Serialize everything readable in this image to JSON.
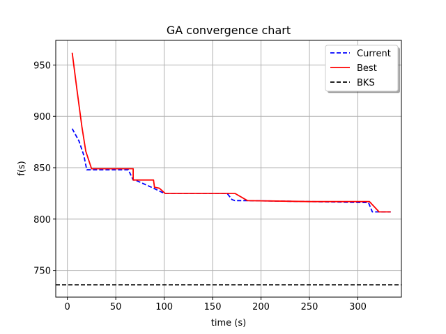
{
  "chart_data": {
    "type": "line",
    "title": "GA convergence chart",
    "xlabel": "time (s)",
    "ylabel": "f(s)",
    "xlim": [
      -12,
      345
    ],
    "ylim": [
      724,
      974
    ],
    "xticks": [
      0,
      50,
      100,
      150,
      200,
      250,
      300
    ],
    "yticks": [
      750,
      800,
      850,
      900,
      950
    ],
    "grid": true,
    "legend_position": "top-right",
    "series": [
      {
        "name": "Current",
        "color": "#0000ff",
        "style": "dashed",
        "x": [
          5,
          12,
          17,
          20,
          63,
          68,
          70,
          82,
          89,
          100,
          101,
          165,
          170,
          173,
          186,
          250,
          311,
          315,
          324,
          334
        ],
        "y": [
          888,
          876,
          862,
          848,
          848,
          838,
          838,
          833,
          830,
          825,
          825,
          825,
          819,
          818,
          818,
          817,
          816,
          807,
          807,
          807
        ]
      },
      {
        "name": "Best",
        "color": "#ff0000",
        "style": "solid",
        "x": [
          5,
          10,
          15,
          19,
          25,
          68,
          68,
          89,
          90,
          95,
          101,
          173,
          186,
          250,
          312,
          322,
          334
        ],
        "y": [
          962,
          925,
          890,
          866,
          849,
          849,
          838,
          838,
          831,
          830,
          825,
          825,
          818,
          817,
          817,
          807,
          807
        ]
      },
      {
        "name": "BKS",
        "color": "#000000",
        "style": "dashed",
        "y_constant": 736
      }
    ]
  }
}
